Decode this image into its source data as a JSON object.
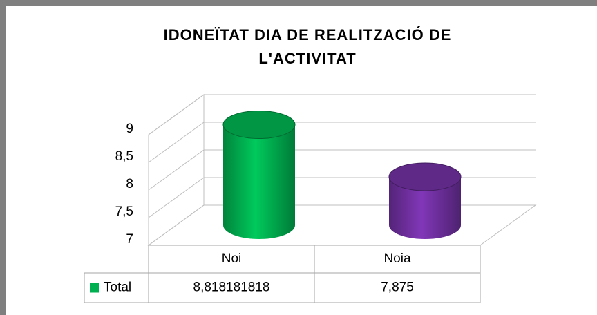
{
  "chart_data": {
    "type": "bar3d-cylinder",
    "title": [
      "IDONEÏTAT DIA DE REALITZACIÓ DE",
      "L'ACTIVITAT"
    ],
    "categories": [
      "Noi",
      "Noia"
    ],
    "series": [
      {
        "name": "Total",
        "values": [
          8.818181818,
          7.875
        ],
        "value_labels": [
          "8,818181818",
          "7,875"
        ],
        "colors": [
          "#00b050",
          "#7030a0"
        ]
      }
    ],
    "ylim": [
      7,
      9
    ],
    "yticks": [
      7,
      {
        "value": 7.5,
        "label": "7,5"
      },
      8,
      {
        "value": 8.5,
        "label": "8,5"
      },
      9
    ],
    "grid": true,
    "data_table": true
  }
}
